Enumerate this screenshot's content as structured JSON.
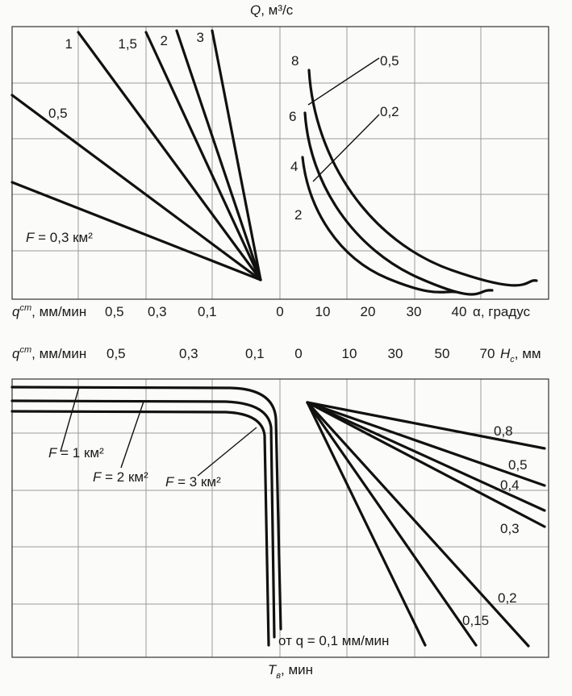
{
  "chart_data": [
    {
      "type": "line",
      "panel": "upper nomogram",
      "top_axis_label": "Q, м³/с",
      "left_axis_label": "qст, мм/мин",
      "left_ticks": [
        "0,5",
        "0,3",
        "0,1"
      ],
      "right_axis_label": "α, градус",
      "right_ticks": [
        "0",
        "10",
        "20",
        "30",
        "40"
      ],
      "left_series": [
        {
          "name": "F = 0,3 км²"
        },
        {
          "name": "0,5"
        },
        {
          "name": "1"
        },
        {
          "name": "1,5"
        },
        {
          "name": "2"
        },
        {
          "name": "3"
        }
      ],
      "right_series": [
        {
          "name": "2"
        },
        {
          "name": "4"
        },
        {
          "name": "6"
        },
        {
          "name": "8"
        }
      ],
      "right_callouts": [
        "0,5",
        "0,2"
      ]
    },
    {
      "type": "line",
      "panel": "lower nomogram",
      "left_axis_label": "qст, мм/мин",
      "left_ticks": [
        "0,5",
        "0,3",
        "0,1"
      ],
      "right_axis_label": "Hс, мм",
      "right_ticks": [
        "0",
        "10",
        "30",
        "50",
        "70"
      ],
      "bottom_axis_label": "Tв, мин",
      "left_series": [
        {
          "name": "F = 1 км²"
        },
        {
          "name": "F = 2 км²"
        },
        {
          "name": "F = 3 км²"
        }
      ],
      "left_note": "от q = 0,1 мм/мин",
      "right_series": [
        {
          "name": "0,8"
        },
        {
          "name": "0,5"
        },
        {
          "name": "0,4"
        },
        {
          "name": "0,3"
        },
        {
          "name": "0,2"
        },
        {
          "name": "0,15"
        }
      ]
    }
  ]
}
